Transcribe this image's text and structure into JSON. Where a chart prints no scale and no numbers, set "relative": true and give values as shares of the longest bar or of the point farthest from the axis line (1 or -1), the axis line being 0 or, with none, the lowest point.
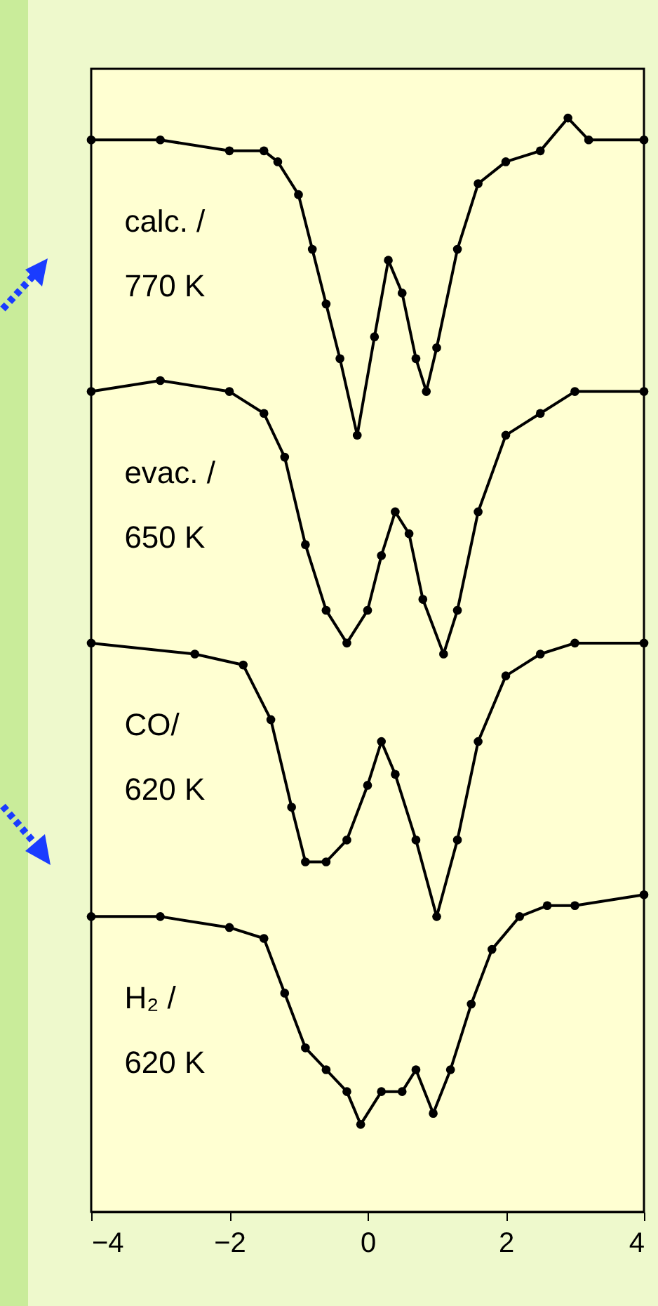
{
  "chart_data": {
    "type": "line",
    "relative": true,
    "marker": "circle",
    "line_style": "solid",
    "tick_labels": "x",
    "xlim": [
      -4,
      4
    ],
    "xticks": [
      -4,
      -2,
      0,
      2,
      4
    ],
    "series": [
      {
        "name": "calc. /\n770 K",
        "color": "#000000",
        "x": [
          -4,
          -3,
          -2,
          -1.5,
          -1.3,
          -1.0,
          -0.8,
          -0.6,
          -0.4,
          -0.15,
          0.1,
          0.3,
          0.5,
          0.7,
          0.85,
          1.0,
          1.3,
          1.6,
          2.0,
          2.5,
          2.9,
          3.2,
          4
        ],
        "values": [
          0.98,
          0.98,
          0.97,
          0.97,
          0.96,
          0.93,
          0.88,
          0.83,
          0.78,
          0.71,
          0.8,
          0.87,
          0.84,
          0.78,
          0.75,
          0.79,
          0.88,
          0.94,
          0.96,
          0.97,
          1.0,
          0.98,
          0.98
        ]
      },
      {
        "name": "evac. /\n650 K",
        "color": "#000000",
        "x": [
          -4,
          -3,
          -2,
          -1.5,
          -1.2,
          -0.9,
          -0.6,
          -0.3,
          0,
          0.2,
          0.4,
          0.6,
          0.8,
          1.1,
          1.3,
          1.6,
          2,
          2.5,
          3,
          4
        ],
        "values": [
          0.75,
          0.76,
          0.75,
          0.73,
          0.69,
          0.61,
          0.55,
          0.52,
          0.55,
          0.6,
          0.64,
          0.62,
          0.56,
          0.51,
          0.55,
          0.64,
          0.71,
          0.73,
          0.75,
          0.75
        ]
      },
      {
        "name": "CO/\n620 K",
        "color": "#000000",
        "x": [
          -4,
          -2.5,
          -1.8,
          -1.4,
          -1.1,
          -0.9,
          -0.6,
          -0.3,
          0,
          0.2,
          0.4,
          0.7,
          1.0,
          1.3,
          1.6,
          2,
          2.5,
          3,
          4
        ],
        "values": [
          0.52,
          0.51,
          0.5,
          0.45,
          0.37,
          0.32,
          0.32,
          0.34,
          0.39,
          0.43,
          0.4,
          0.34,
          0.27,
          0.34,
          0.43,
          0.49,
          0.51,
          0.52,
          0.52
        ]
      },
      {
        "name": "H₂ /\n620 K",
        "color": "#000000",
        "x": [
          -4,
          -3,
          -2,
          -1.5,
          -1.2,
          -0.9,
          -0.6,
          -0.3,
          -0.1,
          0.2,
          0.5,
          0.7,
          0.95,
          1.2,
          1.5,
          1.8,
          2.2,
          2.6,
          3,
          4
        ],
        "values": [
          0.27,
          0.27,
          0.26,
          0.25,
          0.2,
          0.15,
          0.13,
          0.11,
          0.08,
          0.11,
          0.11,
          0.13,
          0.09,
          0.13,
          0.19,
          0.24,
          0.27,
          0.28,
          0.28,
          0.29
        ]
      }
    ]
  }
}
